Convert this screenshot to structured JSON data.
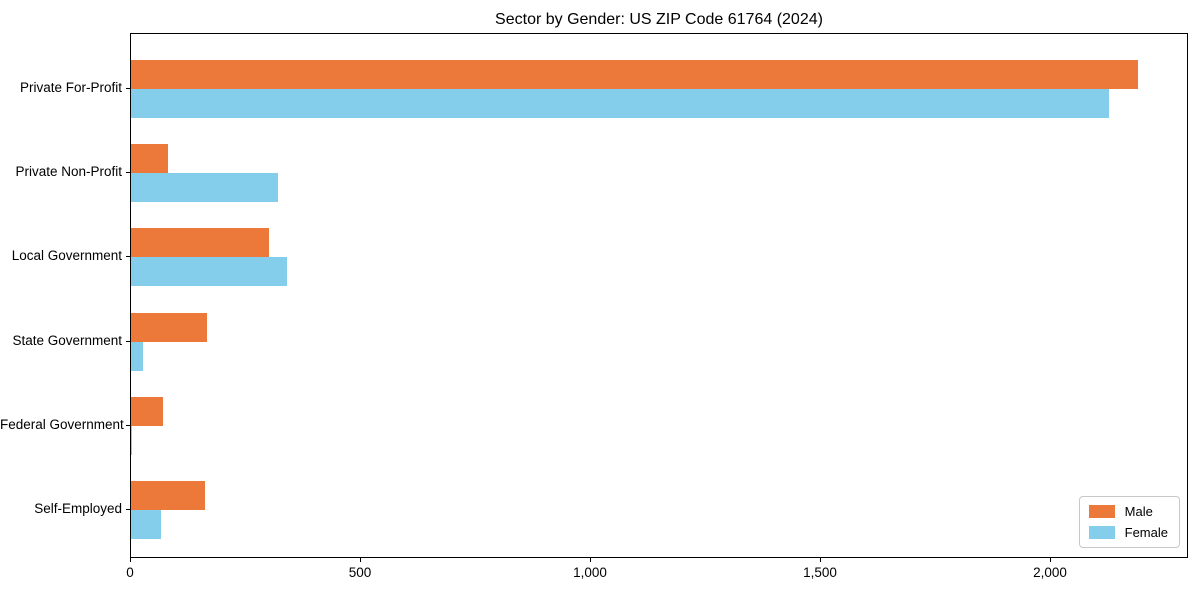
{
  "chart_data": {
    "type": "bar",
    "orientation": "horizontal",
    "title": "Sector by Gender: US ZIP Code 61764 (2024)",
    "categories": [
      "Private For-Profit",
      "Private Non-Profit",
      "Local Government",
      "State Government",
      "Federal Government",
      "Self-Employed"
    ],
    "series": [
      {
        "name": "Male",
        "color": "#ec7839",
        "values": [
          2190,
          80,
          300,
          165,
          70,
          160
        ]
      },
      {
        "name": "Female",
        "color": "#85ceeb",
        "values": [
          2125,
          320,
          340,
          25,
          3,
          65
        ]
      }
    ],
    "xlabel": "",
    "ylabel": "",
    "xlim": [
      0,
      2300
    ],
    "x_ticks": [
      {
        "value": 0,
        "label": "0"
      },
      {
        "value": 500,
        "label": "500"
      },
      {
        "value": 1000,
        "label": "1,000"
      },
      {
        "value": 1500,
        "label": "1,500"
      },
      {
        "value": 2000,
        "label": "2,000"
      }
    ],
    "grid": false,
    "legend_position": "lower right"
  }
}
